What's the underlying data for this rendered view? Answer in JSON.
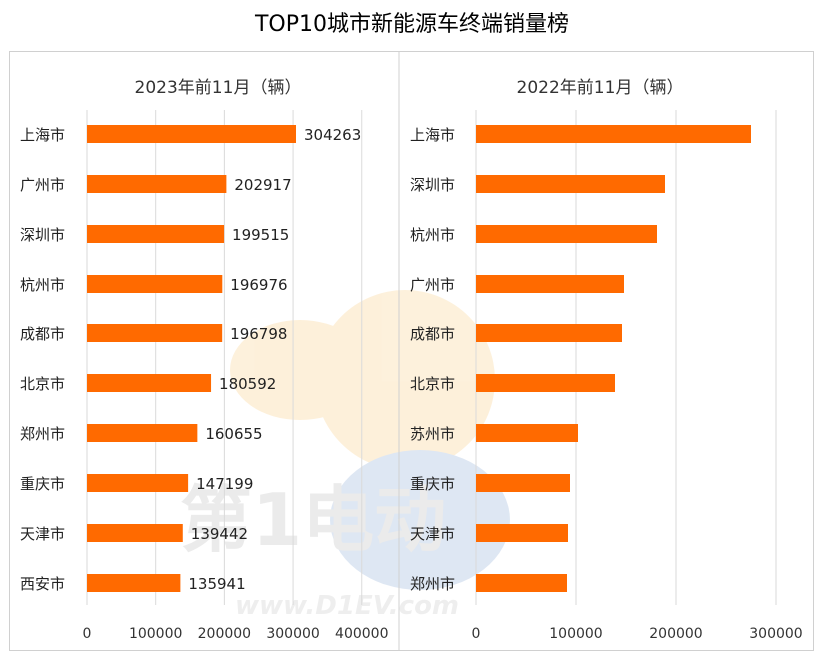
{
  "title": "TOP10城市新能源车终端销量榜",
  "watermark": {
    "brand": "第1电动",
    "url": "www.D1EV.com"
  },
  "colors": {
    "bar": "#ff6a00",
    "grid": "#dadada",
    "border": "#d0d0d0"
  },
  "chart_data": [
    {
      "type": "bar",
      "orientation": "horizontal",
      "title": "2023年前11月（辆）",
      "categories": [
        "上海市",
        "广州市",
        "深圳市",
        "杭州市",
        "成都市",
        "北京市",
        "郑州市",
        "重庆市",
        "天津市",
        "西安市"
      ],
      "values": [
        304263,
        202917,
        199515,
        196976,
        196798,
        180592,
        160655,
        147199,
        139442,
        135941
      ],
      "data_labels": [
        "304263",
        "202917",
        "199515",
        "196976",
        "196798",
        "180592",
        "160655",
        "147199",
        "139442",
        "135941"
      ],
      "xlim": [
        0,
        400000
      ],
      "xticks": [
        "0",
        "100000",
        "200000",
        "300000",
        "400000"
      ],
      "grid": true
    },
    {
      "type": "bar",
      "orientation": "horizontal",
      "title": "2022年前11月（辆）",
      "categories": [
        "上海市",
        "深圳市",
        "杭州市",
        "广州市",
        "成都市",
        "北京市",
        "苏州市",
        "重庆市",
        "天津市",
        "郑州市"
      ],
      "values": [
        275000,
        189000,
        181000,
        148000,
        146000,
        139000,
        102000,
        94000,
        92000,
        91000
      ],
      "xlim": [
        0,
        300000
      ],
      "xticks": [
        "0",
        "100000",
        "200000",
        "300000"
      ],
      "grid": true
    }
  ]
}
